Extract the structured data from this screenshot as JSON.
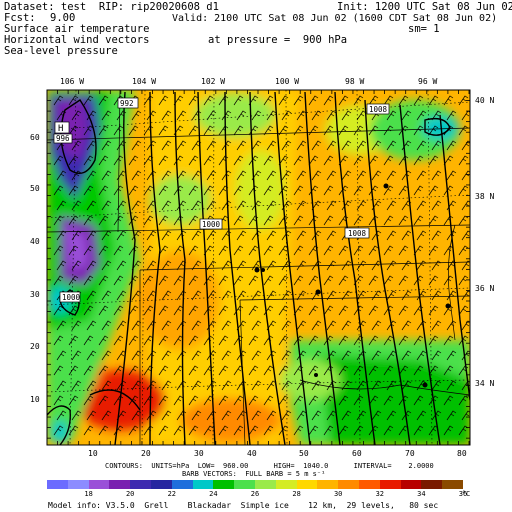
{
  "header": {
    "dataset_line": "Dataset: test  RIP: rip20020608 d1",
    "init_line": "Init: 1200 UTC Sat 08 Jun 02",
    "fcst_label": "Fcst:",
    "fcst_value": "9.00",
    "valid_line": "Valid: 2100 UTC Sat 08 Jun 02 (1600 CDT Sat 08 Jun 02)",
    "fields": [
      "Surface air temperature",
      "Horizontal wind vectors",
      "Sea-level pressure"
    ],
    "pressure_line": "at pressure =  900 hPa",
    "sm_line": "sm= 1"
  },
  "map": {
    "lon_labels": [
      "106 W",
      "104 W",
      "102 W",
      "100 W",
      "98 W",
      "96 W"
    ],
    "lat_labels": [
      "40 N",
      "38 N",
      "36 N",
      "34 N"
    ],
    "x_ticks": [
      "10",
      "20",
      "30",
      "40",
      "50",
      "60",
      "70",
      "80"
    ],
    "y_ticks": [
      "60",
      "50",
      "40",
      "30",
      "20",
      "10"
    ],
    "contour_labels": [
      "992",
      "1008",
      "1000",
      "1008",
      "H",
      "996",
      "1000"
    ]
  },
  "footer": {
    "contours_line": "CONTOURS:  UNITS=hPa  LOW=  960.00      HIGH=  1040.0      INTERVAL=    2.0000",
    "barb_line": "BARB VECTORS:  FULL BARB = 5 m s⁻¹",
    "model_info": "Model info: V3.5.0  Grell    Blackadar  Simple ice    12 km,  29 levels,   80 sec"
  },
  "legend": {
    "unit": "°C",
    "labels": [
      "18",
      "20",
      "22",
      "24",
      "26",
      "28",
      "30",
      "32",
      "34",
      "36"
    ],
    "colors": [
      "#6b6bff",
      "#8c8cff",
      "#9a50d8",
      "#7a20b0",
      "#3e2ab0",
      "#2626a0",
      "#1e6edc",
      "#00c8c8",
      "#00c000",
      "#4ce04c",
      "#9aea4a",
      "#d4ec24",
      "#ffd800",
      "#ffb400",
      "#ff8a00",
      "#ff5a00",
      "#e81a00",
      "#b80000",
      "#7a1a00",
      "#8a4a00"
    ]
  }
}
